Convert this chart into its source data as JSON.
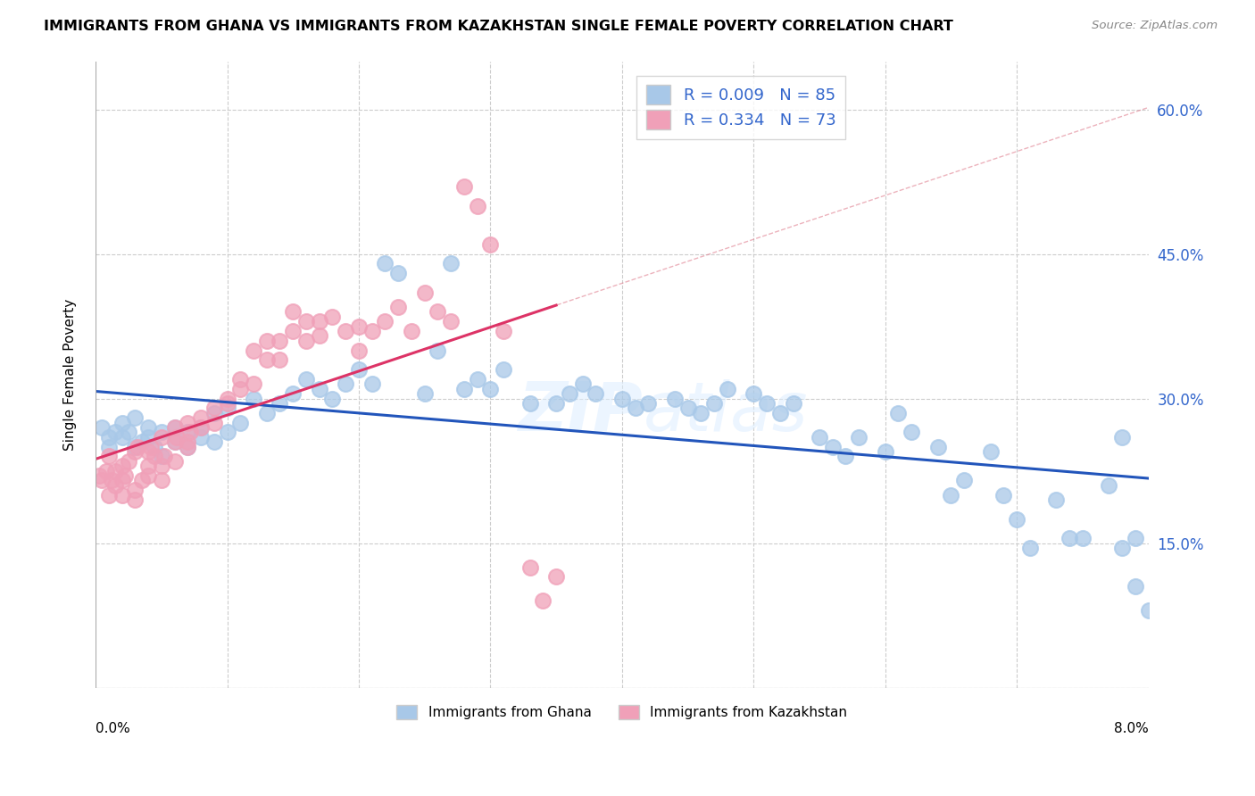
{
  "title": "IMMIGRANTS FROM GHANA VS IMMIGRANTS FROM KAZAKHSTAN SINGLE FEMALE POVERTY CORRELATION CHART",
  "source": "Source: ZipAtlas.com",
  "ylabel": "Single Female Poverty",
  "ghana_R": 0.009,
  "ghana_N": 85,
  "kazakh_R": 0.334,
  "kazakh_N": 73,
  "ghana_color": "#a8c8e8",
  "kazakh_color": "#f0a0b8",
  "ghana_line_color": "#2255bb",
  "kazakh_line_color": "#dd3366",
  "ref_line_color": "#f0a0b8",
  "xmin": 0.0,
  "xmax": 0.08,
  "ymin": 0.0,
  "ymax": 0.65,
  "yticks": [
    0.0,
    0.15,
    0.3,
    0.45,
    0.6
  ],
  "ytick_labels": [
    "",
    "15.0%",
    "30.0%",
    "45.0%",
    "60.0%"
  ],
  "ghana_points_x": [
    0.0005,
    0.001,
    0.001,
    0.0015,
    0.002,
    0.002,
    0.0025,
    0.003,
    0.003,
    0.0035,
    0.004,
    0.004,
    0.0045,
    0.005,
    0.005,
    0.006,
    0.006,
    0.007,
    0.007,
    0.008,
    0.008,
    0.009,
    0.009,
    0.01,
    0.01,
    0.011,
    0.012,
    0.013,
    0.014,
    0.015,
    0.016,
    0.017,
    0.018,
    0.019,
    0.02,
    0.021,
    0.022,
    0.023,
    0.025,
    0.026,
    0.027,
    0.028,
    0.029,
    0.03,
    0.031,
    0.033,
    0.035,
    0.036,
    0.037,
    0.038,
    0.04,
    0.041,
    0.042,
    0.044,
    0.045,
    0.046,
    0.047,
    0.048,
    0.05,
    0.051,
    0.052,
    0.053,
    0.055,
    0.056,
    0.057,
    0.058,
    0.06,
    0.061,
    0.062,
    0.064,
    0.065,
    0.066,
    0.068,
    0.069,
    0.07,
    0.071,
    0.073,
    0.074,
    0.075,
    0.077,
    0.078,
    0.079,
    0.08,
    0.078,
    0.079
  ],
  "ghana_points_y": [
    0.27,
    0.26,
    0.25,
    0.265,
    0.26,
    0.275,
    0.265,
    0.28,
    0.25,
    0.255,
    0.26,
    0.27,
    0.25,
    0.24,
    0.265,
    0.255,
    0.27,
    0.265,
    0.25,
    0.26,
    0.27,
    0.255,
    0.285,
    0.29,
    0.265,
    0.275,
    0.3,
    0.285,
    0.295,
    0.305,
    0.32,
    0.31,
    0.3,
    0.315,
    0.33,
    0.315,
    0.44,
    0.43,
    0.305,
    0.35,
    0.44,
    0.31,
    0.32,
    0.31,
    0.33,
    0.295,
    0.295,
    0.305,
    0.315,
    0.305,
    0.3,
    0.29,
    0.295,
    0.3,
    0.29,
    0.285,
    0.295,
    0.31,
    0.305,
    0.295,
    0.285,
    0.295,
    0.26,
    0.25,
    0.24,
    0.26,
    0.245,
    0.285,
    0.265,
    0.25,
    0.2,
    0.215,
    0.245,
    0.2,
    0.175,
    0.145,
    0.195,
    0.155,
    0.155,
    0.21,
    0.26,
    0.105,
    0.08,
    0.145,
    0.155
  ],
  "kazakh_points_x": [
    0.0003,
    0.0005,
    0.0008,
    0.001,
    0.001,
    0.0012,
    0.0015,
    0.0015,
    0.002,
    0.002,
    0.002,
    0.0022,
    0.0025,
    0.003,
    0.003,
    0.003,
    0.0032,
    0.0035,
    0.004,
    0.004,
    0.004,
    0.0042,
    0.0045,
    0.005,
    0.005,
    0.005,
    0.0052,
    0.006,
    0.006,
    0.006,
    0.0062,
    0.007,
    0.007,
    0.007,
    0.0072,
    0.008,
    0.008,
    0.009,
    0.009,
    0.01,
    0.01,
    0.011,
    0.011,
    0.012,
    0.012,
    0.013,
    0.013,
    0.014,
    0.014,
    0.015,
    0.015,
    0.016,
    0.016,
    0.017,
    0.017,
    0.018,
    0.019,
    0.02,
    0.02,
    0.021,
    0.022,
    0.023,
    0.024,
    0.025,
    0.026,
    0.027,
    0.028,
    0.029,
    0.03,
    0.031,
    0.033,
    0.034,
    0.035
  ],
  "kazakh_points_y": [
    0.22,
    0.215,
    0.225,
    0.2,
    0.24,
    0.215,
    0.21,
    0.225,
    0.2,
    0.215,
    0.23,
    0.22,
    0.235,
    0.195,
    0.205,
    0.245,
    0.25,
    0.215,
    0.23,
    0.245,
    0.22,
    0.25,
    0.24,
    0.215,
    0.23,
    0.26,
    0.24,
    0.255,
    0.27,
    0.235,
    0.26,
    0.255,
    0.275,
    0.25,
    0.265,
    0.28,
    0.27,
    0.29,
    0.275,
    0.3,
    0.295,
    0.31,
    0.32,
    0.315,
    0.35,
    0.34,
    0.36,
    0.34,
    0.36,
    0.37,
    0.39,
    0.38,
    0.36,
    0.38,
    0.365,
    0.385,
    0.37,
    0.35,
    0.375,
    0.37,
    0.38,
    0.395,
    0.37,
    0.41,
    0.39,
    0.38,
    0.52,
    0.5,
    0.46,
    0.37,
    0.125,
    0.09,
    0.115
  ]
}
